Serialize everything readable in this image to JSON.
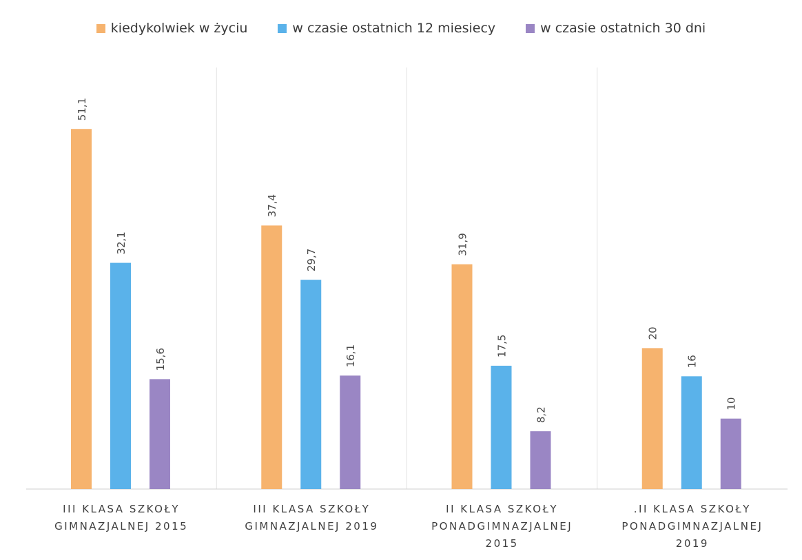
{
  "chart_data": {
    "type": "bar",
    "categories": [
      [
        "III KLASA SZKOŁY",
        "GIMNAZJALNEJ 2015"
      ],
      [
        "III KLASA SZKOŁY",
        "GIMNAZJALNEJ 2019"
      ],
      [
        "II KLASA SZKOŁY",
        "PONADGIMNAZJALNEJ",
        "2015"
      ],
      [
        ".II KLASA SZKOŁY",
        "PONADGIMNAZJALNEJ",
        "2019"
      ]
    ],
    "series": [
      {
        "name": "kiedykolwiek w życiu",
        "color": "#F6B36E",
        "values": [
          51.1,
          37.4,
          31.9,
          20
        ],
        "labels": [
          "51,1",
          "37,4",
          "31,9",
          "20"
        ]
      },
      {
        "name": "w czasie ostatnich 12 miesiecy",
        "color": "#5AB2EA",
        "values": [
          32.1,
          29.7,
          17.5,
          16
        ],
        "labels": [
          "32,1",
          "29,7",
          "17,5",
          "16"
        ]
      },
      {
        "name": "w czasie ostatnich 30 dni",
        "color": "#9A86C4",
        "values": [
          15.6,
          16.1,
          8.2,
          10
        ],
        "labels": [
          "15,6",
          "16,1",
          "8,2",
          "10"
        ]
      }
    ],
    "ylim": [
      0,
      52
    ],
    "legend": "top-center",
    "grid": false
  }
}
